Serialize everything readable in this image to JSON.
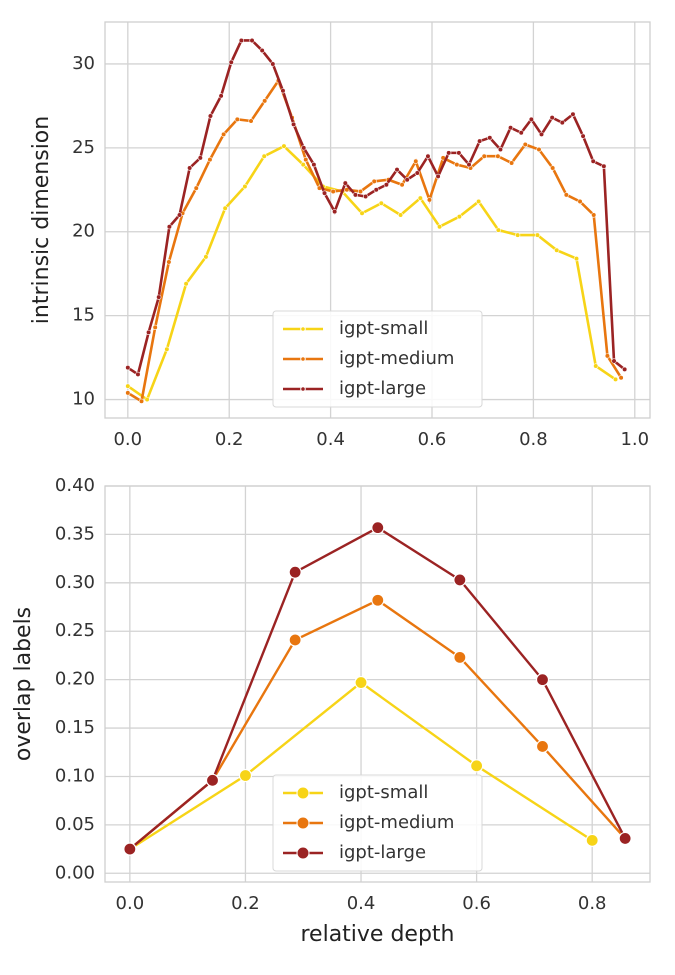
{
  "chart_data": [
    {
      "type": "line",
      "ylabel": "intrinsic dimension",
      "xlim": [
        -0.045,
        1.03
      ],
      "ylim": [
        8.9,
        32.5
      ],
      "xticks": [
        {
          "value": 0,
          "label": "0.0"
        },
        0.2,
        0.4,
        0.6,
        0.8,
        {
          "value": 1,
          "label": "1.0"
        }
      ],
      "yticks": [
        10,
        15,
        20,
        25,
        30
      ],
      "grid": true,
      "legend": "lower center",
      "series": [
        {
          "name": "igpt-small",
          "color": "#f7d417",
          "x": [
            0,
            0.038,
            0.077,
            0.115,
            0.154,
            0.192,
            0.231,
            0.269,
            0.308,
            0.346,
            0.385,
            0.423,
            0.462,
            0.5,
            0.538,
            0.577,
            0.615,
            0.654,
            0.692,
            0.731,
            0.769,
            0.808,
            0.846,
            0.885,
            0.923,
            0.962
          ],
          "values": [
            10.8,
            10.0,
            13.0,
            16.9,
            18.5,
            21.4,
            22.7,
            24.5,
            25.1,
            24.0,
            22.7,
            22.4,
            21.1,
            21.7,
            21.0,
            22.0,
            20.3,
            20.9,
            21.8,
            20.1,
            19.8,
            19.8,
            18.9,
            18.4,
            12.0,
            11.2
          ]
        },
        {
          "name": "igpt-medium",
          "color": "#e8760f",
          "x": [
            0,
            0.027,
            0.054,
            0.081,
            0.108,
            0.135,
            0.162,
            0.189,
            0.216,
            0.243,
            0.27,
            0.297,
            0.324,
            0.351,
            0.378,
            0.405,
            0.432,
            0.459,
            0.486,
            0.514,
            0.541,
            0.568,
            0.595,
            0.622,
            0.649,
            0.676,
            0.703,
            0.73,
            0.757,
            0.784,
            0.811,
            0.838,
            0.865,
            0.892,
            0.919,
            0.946,
            0.973
          ],
          "values": [
            10.4,
            9.9,
            14.3,
            18.2,
            21.1,
            22.6,
            24.3,
            25.8,
            26.7,
            26.6,
            27.8,
            29.0,
            26.8,
            24.3,
            22.6,
            22.4,
            22.5,
            22.4,
            23.0,
            23.1,
            22.8,
            24.2,
            21.9,
            24.4,
            24.0,
            23.8,
            24.5,
            24.5,
            24.1,
            25.2,
            24.9,
            23.8,
            22.2,
            21.8,
            21.0,
            12.6,
            11.3
          ]
        },
        {
          "name": "igpt-large",
          "color": "#9b2323",
          "x": [
            0,
            0.02,
            0.041,
            0.061,
            0.082,
            0.102,
            0.122,
            0.143,
            0.163,
            0.184,
            0.204,
            0.224,
            0.245,
            0.265,
            0.286,
            0.306,
            0.327,
            0.347,
            0.367,
            0.388,
            0.408,
            0.429,
            0.449,
            0.469,
            0.49,
            0.51,
            0.531,
            0.551,
            0.571,
            0.592,
            0.612,
            0.633,
            0.653,
            0.673,
            0.694,
            0.714,
            0.735,
            0.755,
            0.776,
            0.796,
            0.816,
            0.837,
            0.857,
            0.878,
            0.898,
            0.918,
            0.939,
            0.959,
            0.98
          ],
          "values": [
            11.9,
            11.5,
            14.0,
            16.1,
            20.3,
            21.0,
            23.8,
            24.4,
            26.9,
            28.1,
            30.1,
            31.4,
            31.4,
            30.8,
            30.0,
            28.4,
            26.4,
            25.0,
            24.0,
            22.3,
            21.2,
            22.9,
            22.2,
            22.1,
            22.5,
            22.8,
            23.7,
            23.1,
            23.5,
            24.5,
            23.3,
            24.7,
            24.7,
            24.0,
            25.4,
            25.6,
            24.9,
            26.2,
            25.9,
            26.7,
            25.8,
            26.8,
            26.5,
            27.0,
            25.7,
            24.2,
            23.9,
            12.3,
            11.8
          ]
        }
      ]
    },
    {
      "type": "line",
      "ylabel": "overlap labels",
      "xlabel": "relative depth",
      "xlim": [
        -0.043,
        0.9
      ],
      "ylim": [
        -0.009,
        0.4
      ],
      "xticks": [
        {
          "value": 0,
          "label": "0.0"
        },
        0.2,
        0.4,
        0.6,
        0.8
      ],
      "yticks": [
        {
          "value": 0,
          "label": "0.00"
        },
        {
          "value": 0.05,
          "label": "0.05"
        },
        {
          "value": 0.1,
          "label": "0.10"
        },
        {
          "value": 0.15,
          "label": "0.15"
        },
        {
          "value": 0.2,
          "label": "0.20"
        },
        {
          "value": 0.25,
          "label": "0.25"
        },
        {
          "value": 0.3,
          "label": "0.30"
        },
        {
          "value": 0.35,
          "label": "0.35"
        },
        {
          "value": 0.4,
          "label": "0.40"
        }
      ],
      "grid": true,
      "legend": "lower center",
      "series": [
        {
          "name": "igpt-small",
          "color": "#f7d417",
          "x": [
            0,
            0.2,
            0.4,
            0.6,
            0.8
          ],
          "values": [
            0.025,
            0.101,
            0.197,
            0.111,
            0.034
          ]
        },
        {
          "name": "igpt-medium",
          "color": "#e8760f",
          "x": [
            0,
            0.143,
            0.286,
            0.429,
            0.571,
            0.714,
            0.857
          ],
          "values": [
            0.025,
            0.096,
            0.241,
            0.282,
            0.223,
            0.131,
            0.036
          ]
        },
        {
          "name": "igpt-large",
          "color": "#9b2323",
          "x": [
            0,
            0.143,
            0.286,
            0.429,
            0.571,
            0.714,
            0.857
          ],
          "values": [
            0.025,
            0.096,
            0.311,
            0.357,
            0.303,
            0.2,
            0.036
          ]
        }
      ]
    }
  ]
}
